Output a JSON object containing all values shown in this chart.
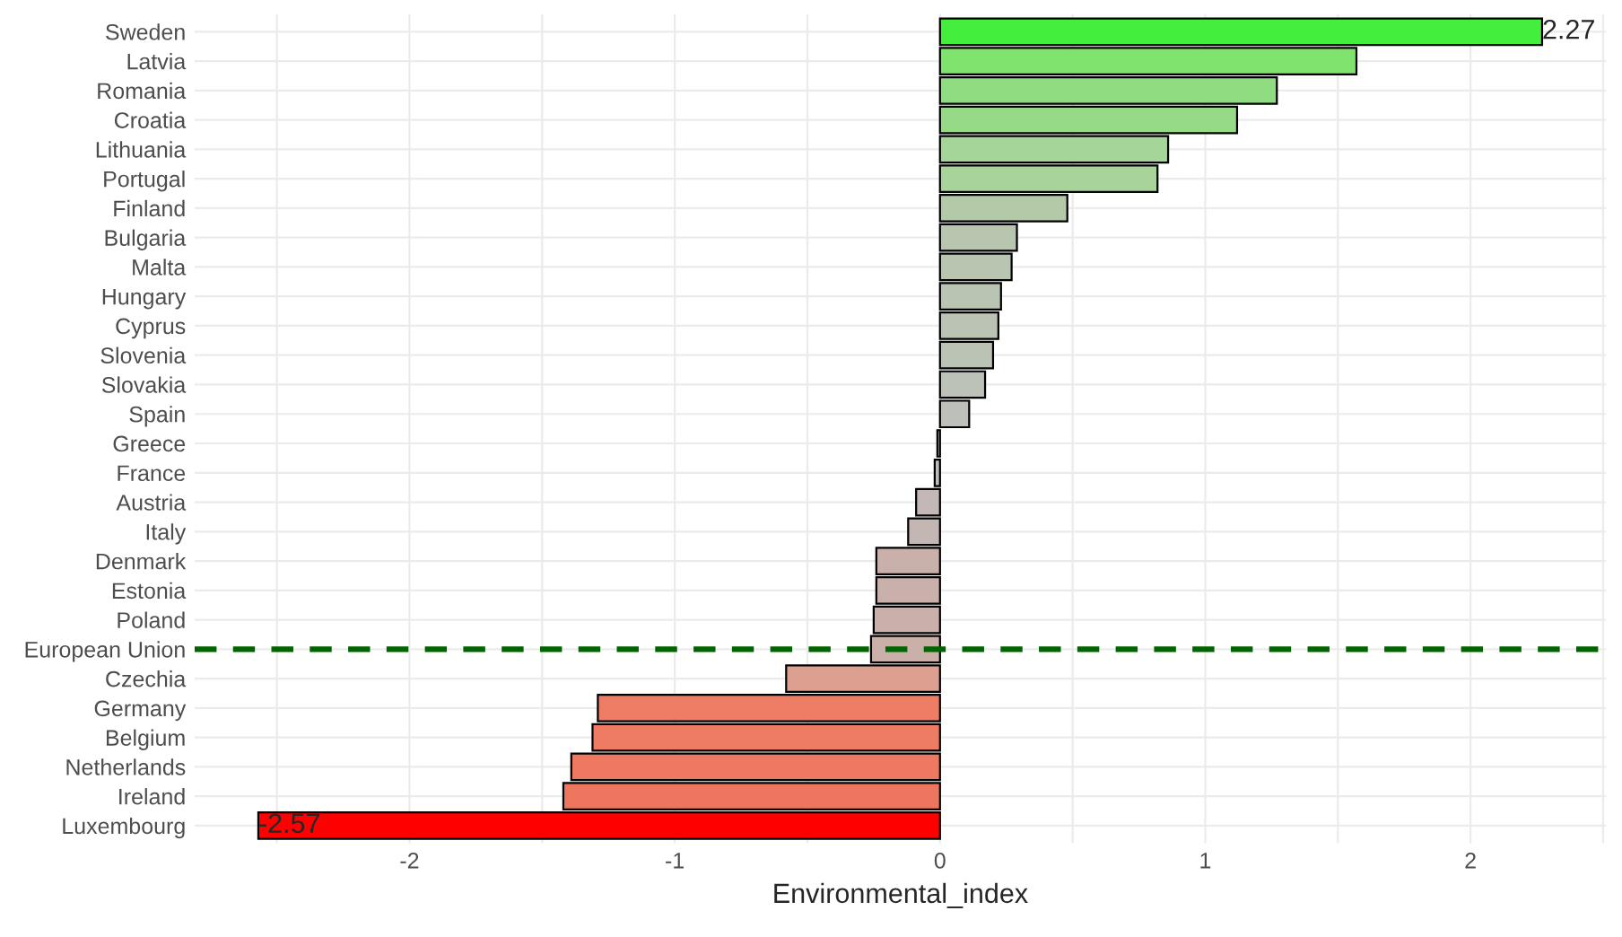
{
  "chart_data": {
    "type": "bar",
    "orientation": "horizontal",
    "xlabel": "Environmental_index",
    "categories": [
      "Sweden",
      "Latvia",
      "Romania",
      "Croatia",
      "Lithuania",
      "Portugal",
      "Finland",
      "Bulgaria",
      "Malta",
      "Hungary",
      "Cyprus",
      "Slovenia",
      "Slovakia",
      "Spain",
      "Greece",
      "France",
      "Austria",
      "Italy",
      "Denmark",
      "Estonia",
      "Poland",
      "European Union",
      "Czechia",
      "Germany",
      "Belgium",
      "Netherlands",
      "Ireland",
      "Luxembourg"
    ],
    "values": [
      2.27,
      1.57,
      1.27,
      1.12,
      0.86,
      0.82,
      0.48,
      0.29,
      0.27,
      0.23,
      0.22,
      0.2,
      0.17,
      0.11,
      -0.01,
      -0.02,
      -0.09,
      -0.12,
      -0.24,
      -0.24,
      -0.25,
      -0.26,
      -0.58,
      -1.29,
      -1.31,
      -1.39,
      -1.42,
      -2.57
    ],
    "colors": [
      "#44ee3c",
      "#80e36e",
      "#8fdd80",
      "#96da87",
      "#a6d59a",
      "#a8d49c",
      "#b3c9a8",
      "#b8c6b0",
      "#b9c5b1",
      "#bac4b3",
      "#bbc4b4",
      "#bbc3b5",
      "#bcc2b7",
      "#bdbfba",
      "#bebebe",
      "#c0bcbb",
      "#c3b8b5",
      "#c4b6b3",
      "#cab0ab",
      "#cab0ab",
      "#cbafaa",
      "#cbafa9",
      "#dd9f90",
      "#ee7d66",
      "#ee7c65",
      "#ef7860",
      "#ef765e",
      "#ff0000"
    ],
    "value_labels": [
      "2.27",
      null,
      null,
      null,
      null,
      null,
      null,
      null,
      null,
      null,
      null,
      null,
      null,
      null,
      null,
      null,
      null,
      null,
      null,
      null,
      null,
      null,
      null,
      null,
      null,
      null,
      null,
      "-2.57"
    ],
    "xlim": [
      -2.81,
      2.51
    ],
    "xticks": [
      {
        "value": -2.5,
        "label": null
      },
      -2,
      {
        "value": -1.5,
        "label": null
      },
      -1,
      {
        "value": -0.5,
        "label": null
      },
      0,
      {
        "value": 0.5,
        "label": null
      },
      1,
      {
        "value": 1.5,
        "label": null
      },
      2,
      {
        "value": 2.5,
        "label": null
      }
    ],
    "grid": true,
    "ref_lines": [
      {
        "axis": "y",
        "value": "European Union",
        "color": "#006400",
        "line_style": "dashed"
      }
    ]
  }
}
